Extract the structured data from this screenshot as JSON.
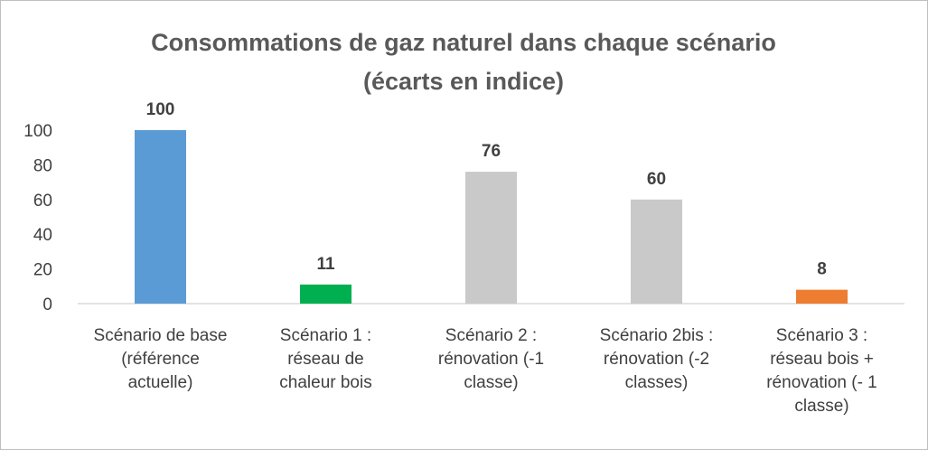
{
  "chart_data": {
    "type": "bar",
    "title": [
      "Consommations de gaz naturel dans chaque scénario",
      "(écarts en indice)"
    ],
    "categories": [
      [
        "Scénario de base",
        "(référence",
        "actuelle)"
      ],
      [
        "Scénario 1 :",
        "réseau de",
        "chaleur bois"
      ],
      [
        "Scénario 2 :",
        "rénovation (-1",
        "classe)"
      ],
      [
        "Scénario 2bis :",
        "rénovation (-2",
        "classes)"
      ],
      [
        "Scénario 3 :",
        "réseau bois +",
        "rénovation (- 1",
        "classe)"
      ]
    ],
    "values": [
      100,
      11,
      76,
      60,
      8
    ],
    "data_labels": [
      "100",
      "11",
      "76",
      "60",
      "8"
    ],
    "colors": [
      "#5b9bd5",
      "#00b050",
      "#c9c9c9",
      "#c9c9c9",
      "#ed7d31"
    ],
    "ylim": [
      0,
      100
    ],
    "yticks": [
      0,
      20,
      40,
      60,
      80,
      100
    ],
    "xlabel": "",
    "ylabel": "",
    "grid": false,
    "legend": "none"
  }
}
